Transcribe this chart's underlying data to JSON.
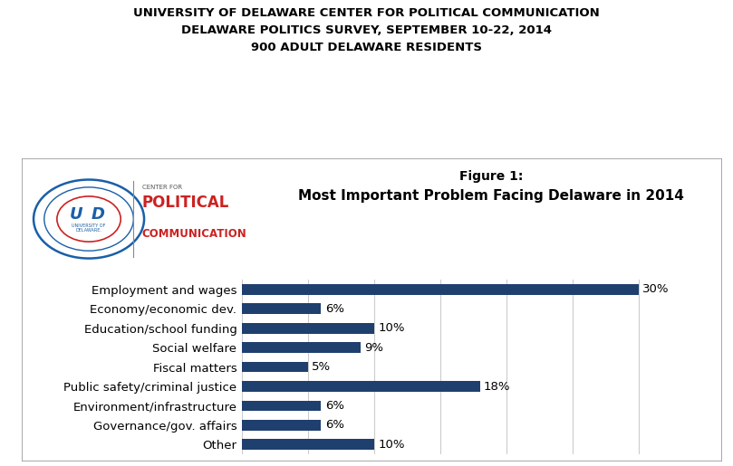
{
  "title_lines": [
    "UNIVERSITY OF DELAWARE CENTER FOR POLITICAL COMMUNICATION",
    "DELAWARE POLITICS SURVEY, SEPTEMBER 10-22, 2014",
    "900 ADULT DELAWARE RESIDENTS"
  ],
  "figure_label": "Figure 1:",
  "figure_subtitle": "Most Important Problem Facing Delaware in 2014",
  "categories": [
    "Employment and wages",
    "Economy/economic dev.",
    "Education/school funding",
    "Social welfare",
    "Fiscal matters",
    "Public safety/criminal justice",
    "Environment/infrastructure",
    "Governance/gov. affairs",
    "Other"
  ],
  "values": [
    30,
    6,
    10,
    9,
    5,
    18,
    6,
    6,
    10
  ],
  "bar_color": "#1F3F6E",
  "label_color": "#000000",
  "background_color": "#ffffff",
  "xlim": [
    0,
    33
  ],
  "bar_height": 0.55,
  "title_fontsize": 9.5,
  "label_fontsize": 9.5,
  "value_fontsize": 9.5,
  "figure_label_fontsize": 10,
  "figure_subtitle_fontsize": 11,
  "grid_color": "#cccccc",
  "border_color": "#999999"
}
